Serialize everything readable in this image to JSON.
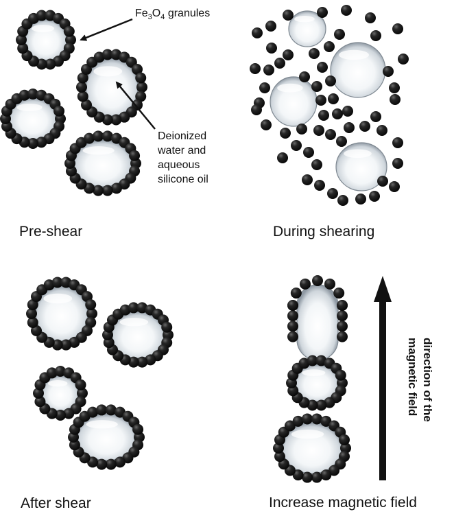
{
  "labels": {
    "pre_shear": "Pre-shear",
    "during_shearing": "During shearing",
    "after_shear": "After shear",
    "increase_field": "Increase magnetic field"
  },
  "callouts": {
    "granules_prefix": "Fe",
    "granules_sub1": "3",
    "granules_mid": "O",
    "granules_sub2": "4",
    "granules_suffix": " granules",
    "droplet_line1": "Deionized",
    "droplet_line2": "water and",
    "droplet_line3": "aqueous",
    "droplet_line4": "silicone oil"
  },
  "field_arrow": {
    "line1": "direction of the",
    "line2": "magnetic field"
  },
  "colors": {
    "particle": "#1a1a1a",
    "droplet_edge": "#9aa3ab",
    "droplet_core": "#ffffff"
  }
}
